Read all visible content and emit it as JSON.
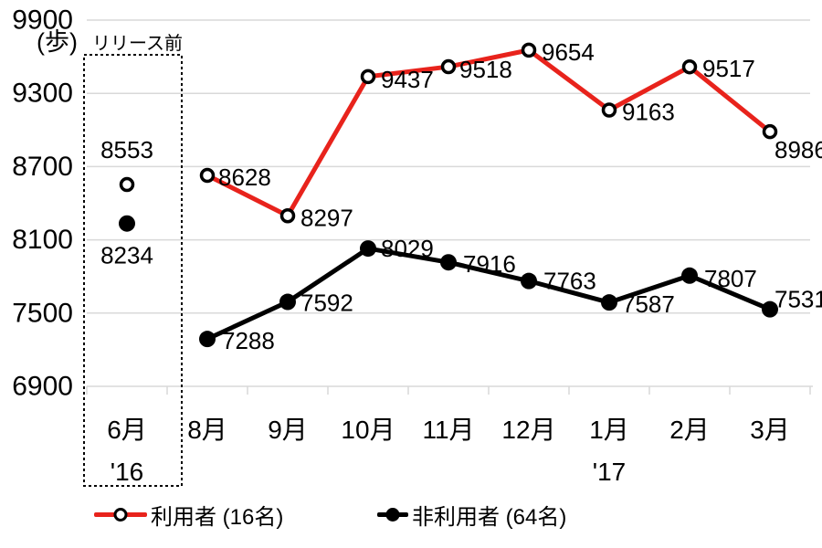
{
  "chart_data": {
    "type": "line",
    "title": "",
    "ylabel_unit": "(歩)",
    "pre_release_label": "リリース前",
    "categories": [
      "6月",
      "8月",
      "9月",
      "10月",
      "11月",
      "12月",
      "1月",
      "2月",
      "3月"
    ],
    "year_labels": [
      {
        "text": "'16",
        "category_index": 0
      },
      {
        "text": "'17",
        "category_index": 6
      }
    ],
    "ylim": [
      6900,
      9900
    ],
    "yticks": [
      6900,
      7500,
      8100,
      8700,
      9300,
      9900
    ],
    "grid": true,
    "legend_position": "bottom",
    "colors": {
      "grid": "#d9d9d9",
      "text": "#000000",
      "background": "#ffffff"
    },
    "series": [
      {
        "name": "利用者 (16名)",
        "color": "#e8231c",
        "marker": "open-circle",
        "line_start_index": 1,
        "values": [
          8553,
          8628,
          8297,
          9437,
          9518,
          9654,
          9163,
          9517,
          8986
        ]
      },
      {
        "name": "非利用者 (64名)",
        "color": "#000000",
        "marker": "filled-circle",
        "line_start_index": 1,
        "values": [
          8234,
          7288,
          7592,
          8029,
          7916,
          7763,
          7587,
          7807,
          7531
        ]
      }
    ]
  }
}
